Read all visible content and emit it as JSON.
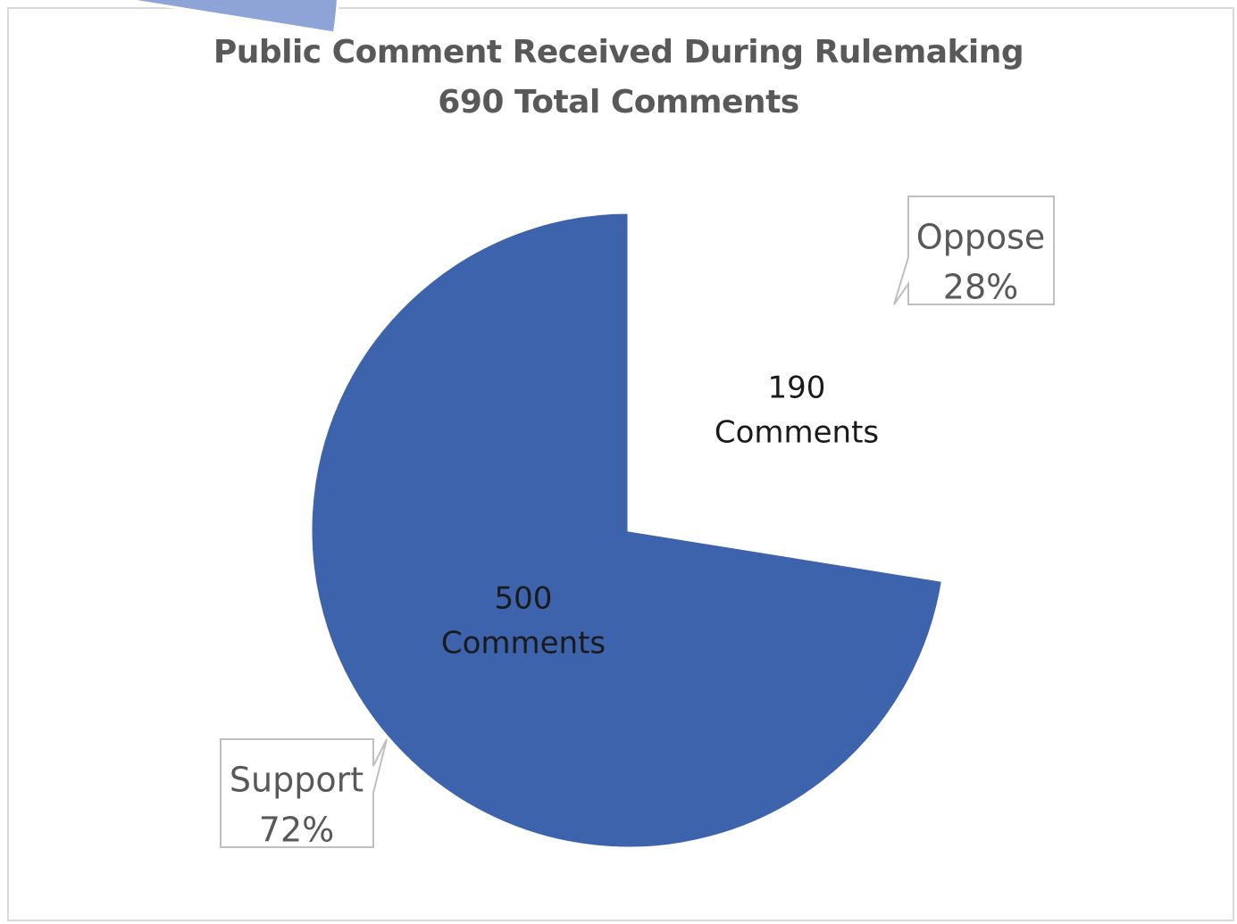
{
  "chart_data": {
    "type": "pie",
    "title": "Public Comment Received During Rulemaking",
    "subtitle": "690 Total Comments",
    "slices": [
      {
        "category": "Oppose",
        "value": 190,
        "value_label": "190",
        "value_unit": "Comments",
        "percent_label": "28%",
        "color": "#8EA3D6",
        "exploded": true
      },
      {
        "category": "Support",
        "value": 500,
        "value_label": "500",
        "value_unit": "Comments",
        "percent_label": "72%",
        "color": "#3C63AB",
        "exploded": false
      }
    ],
    "legend": "none",
    "start_angle": "12 o'clock, clockwise"
  },
  "colors": {
    "title_text": "#595959",
    "data_label_text": "#1a1a1a",
    "callout_text": "#595959",
    "callout_border": "#bfbfbf",
    "frame_border": "#d9d9d9"
  }
}
